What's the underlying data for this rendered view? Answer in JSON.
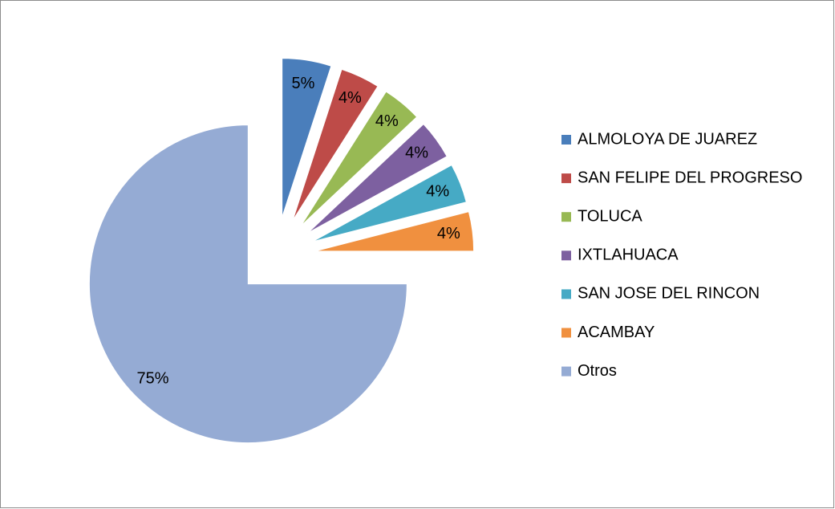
{
  "chart_data": {
    "type": "pie",
    "categories": [
      "ALMOLOYA DE JUAREZ",
      "SAN FELIPE DEL PROGRESO",
      "TOLUCA",
      "IXTLAHUACA",
      "SAN JOSE DEL RINCON",
      "ACAMBAY",
      "Otros"
    ],
    "values": [
      5,
      4,
      4,
      4,
      4,
      4,
      75
    ],
    "value_labels": [
      "5%",
      "4%",
      "4%",
      "4%",
      "4%",
      "4%",
      "75%"
    ],
    "colors": [
      "#4a7ebb",
      "#be4b48",
      "#98b954",
      "#7d60a0",
      "#46aac5",
      "#f0903f",
      "#95abd4"
    ],
    "exploded": true,
    "legend": "right"
  }
}
